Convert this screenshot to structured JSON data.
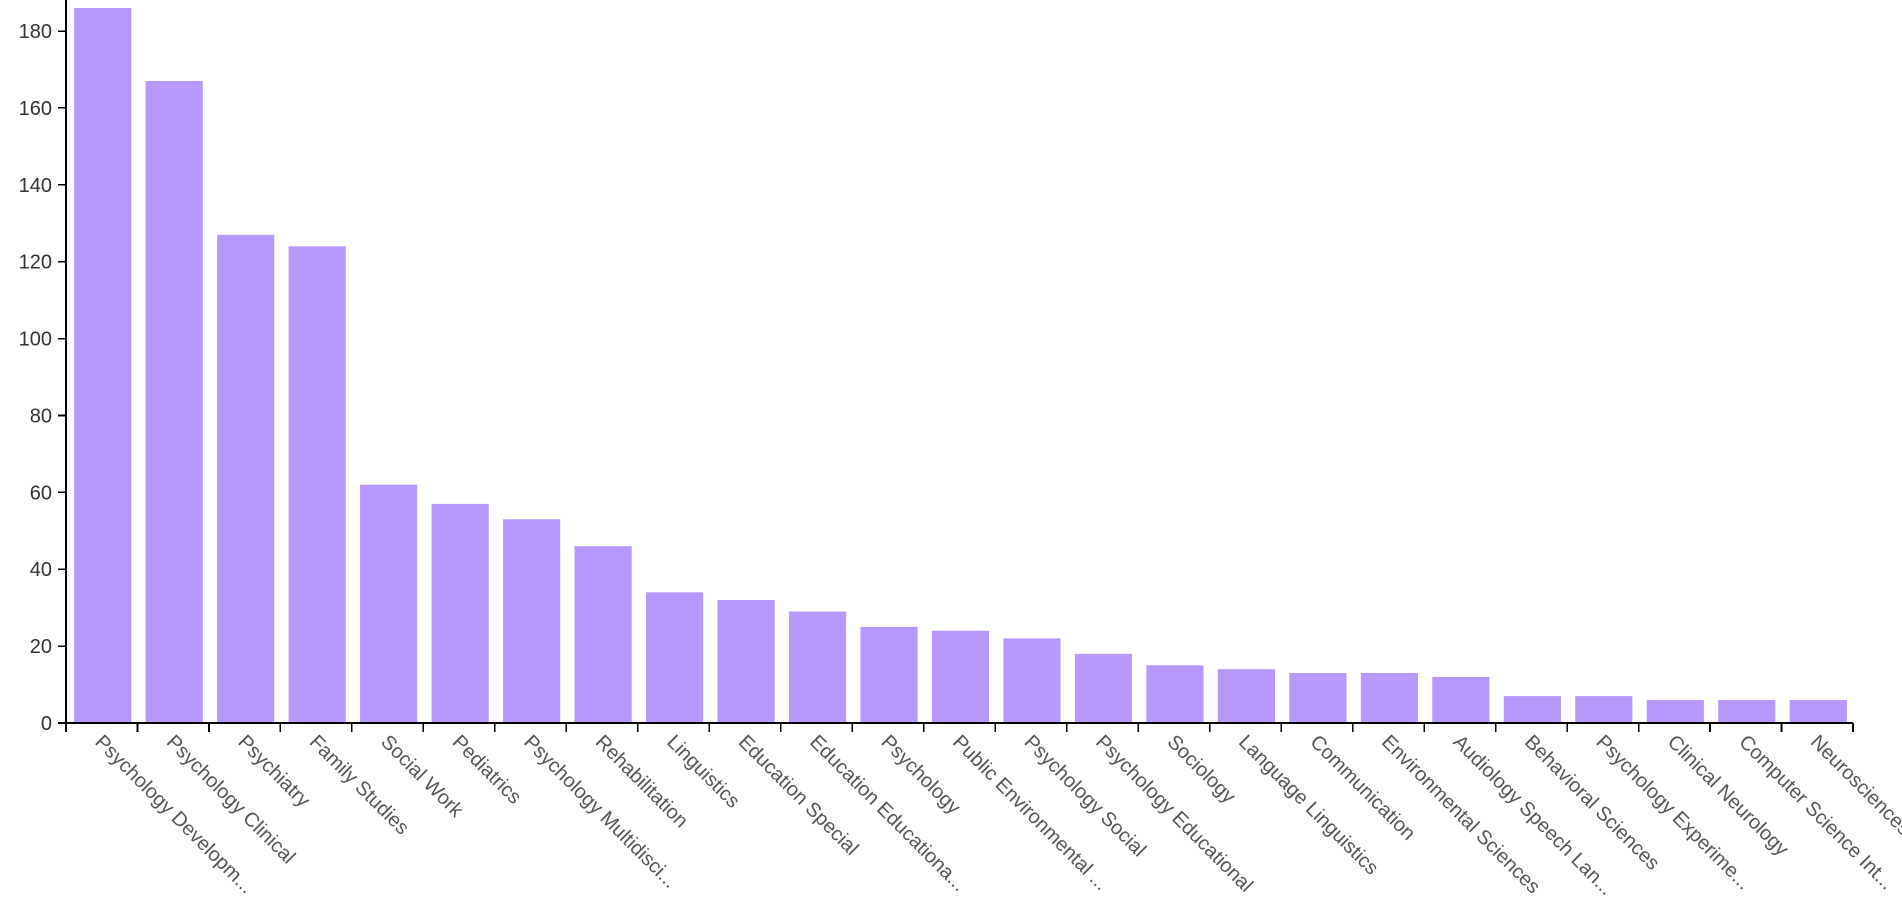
{
  "chart_data": {
    "type": "bar",
    "categories": [
      "Psychology Developm...",
      "Psychology Clinical",
      "Psychiatry",
      "Family Studies",
      "Social Work",
      "Pediatrics",
      "Psychology Multidisci...",
      "Rehabilitation",
      "Linguistics",
      "Education Special",
      "Education Educationa...",
      "Psychology",
      "Public Environmental ...",
      "Psychology Social",
      "Psychology Educational",
      "Sociology",
      "Language Linguistics",
      "Communication",
      "Environmental Sciences",
      "Audiology Speech Lan...",
      "Behavioral Sciences",
      "Psychology Experime...",
      "Clinical Neurology",
      "Computer Science Int...",
      "Neurosciences"
    ],
    "values": [
      186,
      167,
      127,
      124,
      62,
      57,
      53,
      46,
      34,
      32,
      29,
      25,
      24,
      22,
      18,
      15,
      14,
      13,
      13,
      12,
      7,
      7,
      6,
      6,
      6
    ],
    "yticks": [
      0,
      20,
      40,
      60,
      80,
      100,
      120,
      140,
      160,
      180
    ],
    "ylim": [
      0,
      186
    ],
    "title": "",
    "xlabel": "",
    "ylabel": "",
    "grid": false,
    "bar_color": "#b899fb"
  }
}
